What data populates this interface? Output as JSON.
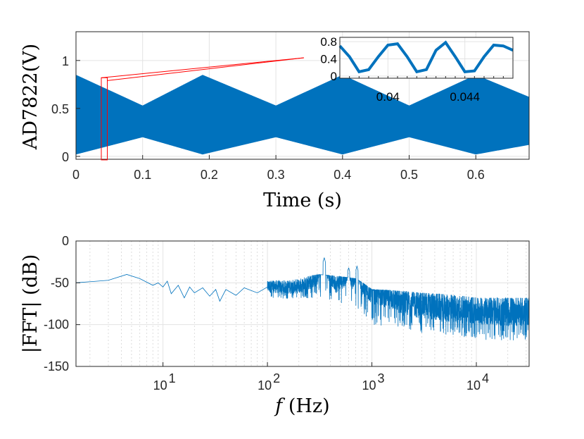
{
  "chart_data": [
    {
      "type": "line",
      "title": "",
      "xlabel": "Time (s)",
      "ylabel": "AD7822(V)",
      "xlim": [
        0,
        0.68
      ],
      "ylim": [
        -0.03,
        1.3
      ],
      "xticks": [
        "0",
        "0.1",
        "0.2",
        "0.3",
        "0.4",
        "0.5",
        "0.6"
      ],
      "xtick_values": [
        0,
        0.1,
        0.2,
        0.3,
        0.4,
        0.5,
        0.6
      ],
      "yticks": [
        "0",
        "0.5",
        "1"
      ],
      "ytick_values": [
        0,
        0.5,
        1
      ],
      "grid": true,
      "color": "#0072bd",
      "series": [
        {
          "description_of_shape": "dense oscillation, amplitude-modulated envelope",
          "carrier_min_envelope": [
            [
              0,
              0.02
            ],
            [
              0.1,
              0.2
            ],
            [
              0.19,
              0.02
            ],
            [
              0.3,
              0.2
            ],
            [
              0.4,
              0.02
            ],
            [
              0.5,
              0.2
            ],
            [
              0.6,
              0.02
            ],
            [
              0.68,
              0.12
            ]
          ],
          "carrier_max_envelope": [
            [
              0,
              0.85
            ],
            [
              0.1,
              0.53
            ],
            [
              0.19,
              0.85
            ],
            [
              0.3,
              0.53
            ],
            [
              0.4,
              0.85
            ],
            [
              0.5,
              0.53
            ],
            [
              0.6,
              0.85
            ],
            [
              0.68,
              0.62
            ]
          ]
        }
      ],
      "highlight_box": {
        "x_range": [
          0.038,
          0.047
        ],
        "y_range": [
          0,
          0.82
        ],
        "color": "#ff0000"
      },
      "inset": {
        "type": "line",
        "xlim": [
          0.0375,
          0.0465
        ],
        "ylim": [
          -0.05,
          0.9
        ],
        "xticks": [
          "0.04",
          "0.044"
        ],
        "xtick_values": [
          0.04,
          0.044
        ],
        "yticks": [
          "0",
          "0.4",
          "0.8"
        ],
        "ytick_values": [
          0,
          0.4,
          0.8
        ],
        "x": [
          0.0375,
          0.038,
          0.0385,
          0.039,
          0.0395,
          0.04,
          0.0405,
          0.041,
          0.0415,
          0.042,
          0.0425,
          0.043,
          0.0435,
          0.044,
          0.0445,
          0.045,
          0.0455,
          0.046,
          0.0465
        ],
        "y": [
          0.7,
          0.45,
          0.1,
          0.15,
          0.45,
          0.72,
          0.75,
          0.45,
          0.1,
          0.15,
          0.6,
          0.78,
          0.45,
          0.1,
          0.12,
          0.45,
          0.72,
          0.7,
          0.6
        ]
      }
    },
    {
      "type": "line",
      "title": "",
      "xlabel": "f (Hz)",
      "ylabel": "|FFT| (dB)",
      "xscale": "log",
      "xlim": [
        1.47,
        32000
      ],
      "ylim": [
        -150,
        0
      ],
      "xticks": [
        "10",
        "10",
        "10",
        "10"
      ],
      "xtick_exponents": [
        "1",
        "2",
        "3",
        "4"
      ],
      "xtick_values": [
        10,
        100,
        1000,
        10000
      ],
      "yticks": [
        "0",
        "-50",
        "-100",
        "-150"
      ],
      "ytick_values": [
        0,
        -50,
        -100,
        -150
      ],
      "grid": true,
      "color": "#0072bd",
      "series": [
        {
          "points": [
            [
              1.47,
              -50
            ],
            [
              3,
              -47
            ],
            [
              4.5,
              -40
            ],
            [
              6,
              -45
            ],
            [
              8,
              -53
            ],
            [
              9,
              -50
            ],
            [
              10,
              -55
            ],
            [
              11,
              -48
            ],
            [
              12,
              -63
            ],
            [
              14,
              -53
            ],
            [
              16,
              -68
            ],
            [
              18,
              -55
            ],
            [
              20,
              -62
            ],
            [
              24,
              -56
            ],
            [
              28,
              -66
            ],
            [
              32,
              -58
            ],
            [
              35,
              -72
            ],
            [
              40,
              -58
            ],
            [
              50,
              -65
            ],
            [
              60,
              -56
            ],
            [
              80,
              -62
            ],
            [
              100,
              -55
            ],
            [
              150,
              -56
            ],
            [
              200,
              -55
            ],
            [
              300,
              -45
            ],
            [
              350,
              -20
            ],
            [
              380,
              -38
            ],
            [
              450,
              -53
            ],
            [
              550,
              -45
            ],
            [
              600,
              -32
            ],
            [
              650,
              -50
            ],
            [
              720,
              -30
            ],
            [
              800,
              -55
            ],
            [
              1000,
              -62
            ],
            [
              1500,
              -68
            ],
            [
              2000,
              -75
            ],
            [
              3000,
              -78
            ],
            [
              5000,
              -82
            ],
            [
              10000,
              -84
            ],
            [
              20000,
              -86
            ],
            [
              32000,
              -85
            ]
          ],
          "noise_band": {
            "x_start": 100,
            "lower": [
              [
                100,
                -70
              ],
              [
                300,
                -68
              ],
              [
                700,
                -80
              ],
              [
                1000,
                -100
              ],
              [
                3000,
                -110
              ],
              [
                10000,
                -118
              ],
              [
                32000,
                -120
              ]
            ],
            "upper": [
              [
                100,
                -48
              ],
              [
                300,
                -40
              ],
              [
                700,
                -45
              ],
              [
                1000,
                -58
              ],
              [
                3000,
                -62
              ],
              [
                10000,
                -68
              ],
              [
                32000,
                -68
              ]
            ]
          }
        }
      ]
    }
  ]
}
